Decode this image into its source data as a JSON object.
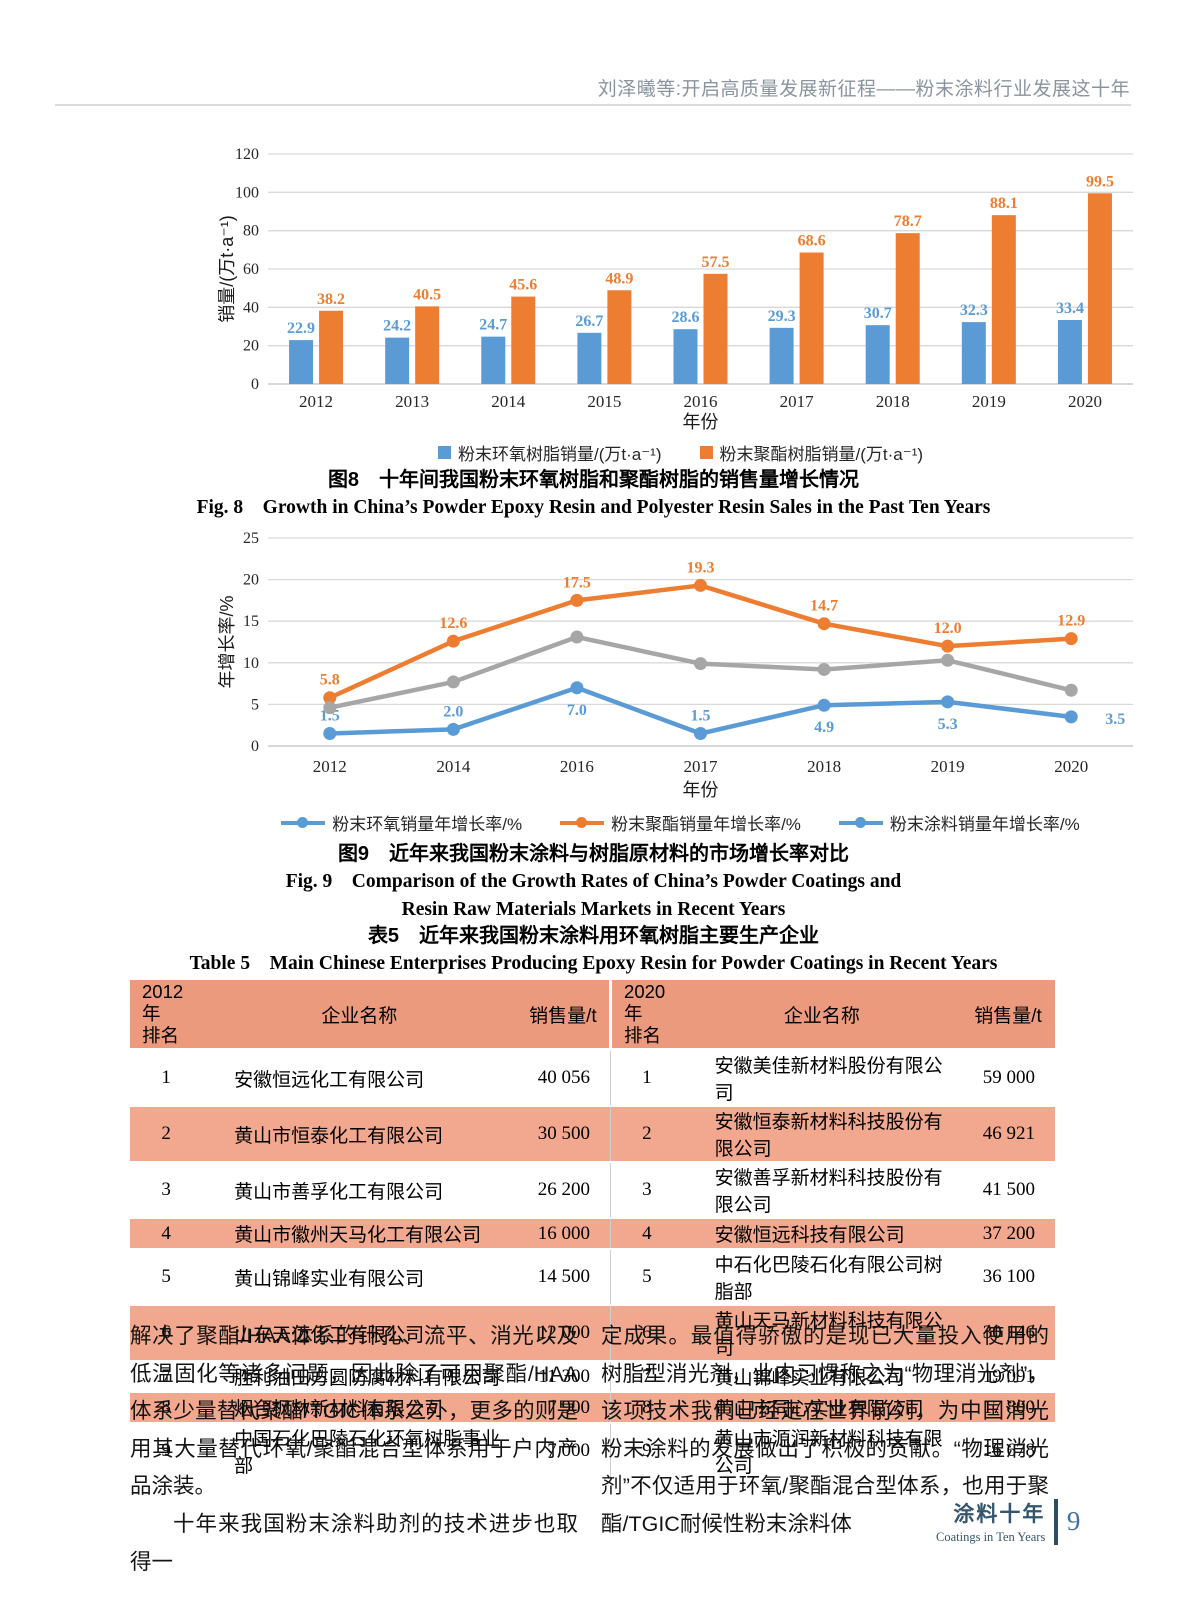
{
  "header": {
    "running_title": "刘泽曦等:开启高质量发展新征程——粉末涂料行业发展这十年"
  },
  "chart_data": [
    {
      "id": "fig8",
      "type": "bar",
      "title": "图8　十年间我国粉末环氧树脂和聚酯树脂的销售量增长情况",
      "categories": [
        "2012",
        "2013",
        "2014",
        "2015",
        "2016",
        "2017",
        "2018",
        "2019",
        "2020"
      ],
      "series": [
        {
          "name": "粉末环氧树脂销量/(万t·a⁻¹)",
          "color": "#5B9BD5",
          "values": [
            22.9,
            24.2,
            24.7,
            26.7,
            28.6,
            29.3,
            30.7,
            32.3,
            33.4
          ]
        },
        {
          "name": "粉末聚酯树脂销量/(万t·a⁻¹)",
          "color": "#ED7D31",
          "values": [
            38.2,
            40.5,
            45.6,
            48.9,
            57.5,
            68.6,
            78.7,
            88.1,
            99.5
          ]
        }
      ],
      "xlabel": "年份",
      "ylabel": "销量/(万t·a⁻¹)",
      "ylim": [
        0,
        120
      ],
      "yticks": [
        0,
        20,
        40,
        60,
        80,
        100,
        120
      ],
      "grid": true,
      "value_labels": true,
      "legend_position": "bottom"
    },
    {
      "id": "fig9",
      "type": "line",
      "title": "图9　近年来我国粉末涂料与树脂原材料的市场增长率对比",
      "categories": [
        "2012",
        "2014",
        "2016",
        "2017",
        "2018",
        "2019",
        "2020"
      ],
      "series": [
        {
          "name": "粉末环氧销量年增长率/%",
          "color": "#5B9BD5",
          "values": [
            1.5,
            2.0,
            7.0,
            1.5,
            4.9,
            5.3,
            3.5
          ],
          "value_labels": true,
          "label_offsets": [
            [
              0,
              -13
            ],
            [
              0,
              -13
            ],
            [
              0,
              27
            ],
            [
              0,
              -13
            ],
            [
              0,
              27
            ],
            [
              0,
              27
            ],
            [
              34,
              7
            ]
          ]
        },
        {
          "name": "粉末聚酯销量年增长率/%",
          "color": "#ED7D31",
          "values": [
            5.8,
            12.6,
            17.5,
            19.3,
            14.7,
            12.0,
            12.9
          ],
          "value_labels": true,
          "label_offsets": [
            [
              0,
              -13
            ],
            [
              0,
              -13
            ],
            [
              0,
              -13
            ],
            [
              0,
              -13
            ],
            [
              0,
              -13
            ],
            [
              0,
              -13
            ],
            [
              0,
              -13
            ]
          ]
        },
        {
          "name": "粉末涂料销量年增长率/%",
          "color": "#A6A6A6",
          "legend_color": "#5B9BD5",
          "values": [
            4.6,
            7.7,
            13.1,
            9.9,
            9.2,
            10.3,
            6.7
          ],
          "value_labels": false
        }
      ],
      "xlabel": "年份",
      "ylabel": "年增长率/%",
      "ylim": [
        0,
        25
      ],
      "yticks": [
        0,
        5,
        10,
        15,
        20,
        25
      ],
      "grid": true,
      "legend_position": "bottom"
    }
  ],
  "fig8_caption": {
    "zh": "图8　十年间我国粉末环氧树脂和聚酯树脂的销售量增长情况",
    "en": "Fig. 8　Growth in China’s Powder Epoxy Resin and Polyester Resin Sales in the Past Ten Years"
  },
  "fig9_caption": {
    "zh": "图9　近年来我国粉末涂料与树脂原材料的市场增长率对比",
    "en1": "Fig. 9　Comparison of the Growth Rates of China’s Powder Coatings and",
    "en2": "Resin Raw Materials Markets in Recent Years"
  },
  "table5": {
    "title_zh": "表5　近年来我国粉末涂料用环氧树脂主要生产企业",
    "title_en": "Table 5　Main Chinese Enterprises Producing Epoxy Resin for Powder Coatings in Recent Years",
    "headers": [
      "2012年 排名",
      "企业名称",
      "销售量/t",
      "2020年 排名",
      "企业名称",
      "销售量/t"
    ],
    "rows": [
      [
        "1",
        "安徽恒远化工有限公司",
        "40 056",
        "1",
        "安徽美佳新材料股份有限公司",
        "59 000"
      ],
      [
        "2",
        "黄山市恒泰化工有限公司",
        "30 500",
        "2",
        "安徽恒泰新材料科技股份有限公司",
        "46 921"
      ],
      [
        "3",
        "黄山市善孚化工有限公司",
        "26 200",
        "3",
        "安徽善孚新材料科技股份有限公司",
        "41 500"
      ],
      [
        "4",
        "黄山市徽州天马化工有限公司",
        "16 000",
        "4",
        "安徽恒远科技有限公司",
        "37 200"
      ],
      [
        "5",
        "黄山锦峰实业有限公司",
        "14 500",
        "5",
        "中石化巴陵石化有限公司树脂部",
        "36 100"
      ],
      [
        "6",
        "山东天迈化工有限公司",
        "12 000",
        "6",
        "黄山天马新材料科技有限公司",
        "30 146"
      ],
      [
        "7",
        "胜利油田方圆防腐材料有限公司",
        "11 300",
        "7",
        "黄山锦峰实业有限公司",
        "19 091"
      ],
      [
        "8",
        "烟台枫林新材料有限公司",
        "7 900",
        "8",
        "黄山市同心实业有限公司",
        "17 800"
      ],
      [
        "9",
        "中国石化巴陵石化环氧树脂事业部",
        "7 000",
        "9",
        "黄山市源润新材料科技有限公司",
        "16 678"
      ]
    ],
    "header_bg": "#EB9A7E",
    "alt_row_bg": "#F1A88E"
  },
  "body_text": {
    "left": [
      "解决了聚酯/HAA体系的针孔、流平、消光以及低温固化等诸多问题，因此除了可用聚酯/HAA体系少量替代聚酯/TGIC体系之外，更多的则是用其大量替代环氧/聚酯混合型体系用于户内产品涂装。",
      "十年来我国粉末涂料助剂的技术进步也取得一"
    ],
    "right": [
      "定成果。最值得骄傲的是现已大量投入使用的树脂型消光剂，业内习惯称之为“物理消光剂”，该项技术我们已经走在世界前列，为中国消光粉末涂料的发展做出了积极的贡献。“物理消光剂”不仅适用于环氧/聚酯混合型体系，也用于聚酯/TGIC耐候性粉末涂料体"
    ]
  },
  "footer": {
    "brand_zh": "涂料十年",
    "brand_en": "Coatings in Ten Years",
    "page_number": "9"
  },
  "colors": {
    "epoxy_blue": "#5B9BD5",
    "polyester_orange": "#ED7D31",
    "coatings_grey": "#A6A6A6",
    "grid_grey": "#D9D9D9",
    "table_header_bg": "#EB9A7E",
    "table_alt_row_bg": "#F1A88E",
    "footer_accent": "#33556E",
    "page_number_blue": "#3F71A3"
  }
}
